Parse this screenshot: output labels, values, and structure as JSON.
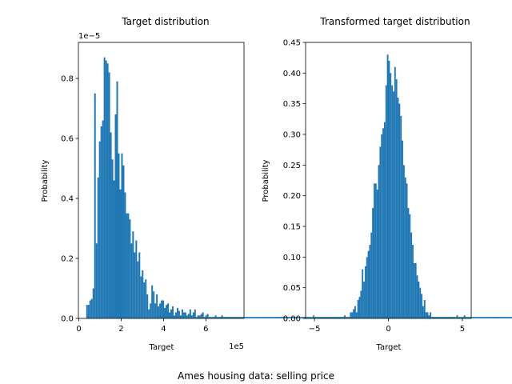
{
  "figure": {
    "suptitle": "Ames housing data: selling price"
  },
  "colors": {
    "bar": "#1f77b4"
  },
  "chart_data": [
    {
      "type": "bar",
      "title": "Target distribution",
      "xlabel": "Target",
      "ylabel": "Probability",
      "x_offset_text": "1e5",
      "y_offset_text": "1e−5",
      "xlim": [
        -0.02,
        7.8
      ],
      "ylim": [
        0,
        0.92
      ],
      "xticks": [
        0,
        2,
        4,
        6
      ],
      "xtick_labels": [
        "0",
        "2",
        "4",
        "6"
      ],
      "yticks": [
        0,
        0.2,
        0.4,
        0.6,
        0.8
      ],
      "ytick_labels": [
        "0.0",
        "0.2",
        "0.4",
        "0.6",
        "0.8"
      ],
      "bin_start": 0.35,
      "bin_width": 0.075,
      "values": [
        0.045,
        0.045,
        0.06,
        0.065,
        0.1,
        0.75,
        0.25,
        0.47,
        0.59,
        0.64,
        0.66,
        0.87,
        0.86,
        0.85,
        0.82,
        0.62,
        0.53,
        0.46,
        0.68,
        0.79,
        0.55,
        0.43,
        0.55,
        0.51,
        0.42,
        0.35,
        0.35,
        0.33,
        0.25,
        0.29,
        0.22,
        0.26,
        0.19,
        0.22,
        0.14,
        0.16,
        0.12,
        0.13,
        0.08,
        0.03,
        0.05,
        0.11,
        0.09,
        0.05,
        0.08,
        0.04,
        0.05,
        0.06,
        0.06,
        0.035,
        0.045,
        0.05,
        0.02,
        0.03,
        0.04,
        0.01,
        0.02,
        0.035,
        0.025,
        0.01,
        0.03,
        0.02,
        0.02,
        0.01,
        0.015,
        0.03,
        0.01,
        0.02,
        0.03,
        0.005,
        0.01,
        0.01,
        0.015,
        0.02,
        0.005,
        0.01,
        0.015,
        0.005,
        0.005,
        0.005,
        0.005,
        0.01,
        0.005,
        0.005,
        0.005,
        0.01,
        0.005,
        0.005,
        0.005,
        0.005,
        0.005,
        0.005,
        0.005,
        0.005,
        0.005,
        0.005,
        0.005,
        0.005,
        0.005,
        0.005,
        0.005,
        0.005,
        0.005,
        0.005,
        0.005,
        0.005,
        0.005,
        0.005,
        0.005,
        0.005,
        0.005,
        0.005,
        0.005,
        0.005,
        0.005,
        0.005,
        0.005,
        0.005,
        0.005,
        0.005,
        0.005,
        0.005,
        0.005,
        0.005,
        0.005,
        0.005,
        0.005,
        0.005,
        0.005,
        0.005,
        0.005,
        0.005,
        0.005,
        0.005,
        0.005,
        0.005,
        0.005,
        0.005,
        0.005,
        0.005,
        0.005,
        0.005,
        0.005,
        0.005,
        0.005,
        0.005,
        0.005,
        0.005,
        0.005,
        0.005,
        0.005,
        0.005,
        0.005,
        0.005,
        0.005,
        0.005,
        0.005,
        0.005,
        0.005,
        0.005,
        0.005,
        0.005,
        0.005,
        0.005,
        0.005,
        0.005,
        0.005,
        0.005,
        0.005,
        0.005,
        0.005,
        0.005,
        0.005,
        0.005,
        0.005,
        0.005,
        0.005,
        0.005,
        0.005,
        0.005,
        0.005,
        0.005,
        0.005,
        0.005,
        0.005,
        0.005,
        0.005,
        0.005,
        0.005,
        0.005,
        0.005,
        0.005,
        0.005,
        0.005,
        0.005,
        0.005,
        0.005,
        0.005,
        0.005,
        0.005,
        0.005,
        0.005,
        0.005,
        0.005,
        0.005,
        0.005,
        0.005,
        0.005,
        0.005,
        0.005,
        0.005,
        0.005,
        0.005,
        0.005,
        0.005,
        0.005,
        0.005,
        0.005,
        0.005,
        0.005,
        0.005,
        0.005,
        0.005,
        0.005,
        0.005,
        0.005,
        0.005,
        0.005,
        0.005,
        0.005,
        0.005,
        0.005,
        0.005,
        0.005,
        0.005,
        0.005,
        0.005,
        0.005,
        0.005,
        0.005,
        0.005,
        0.005,
        0.005,
        0.005,
        0.005,
        0.005,
        0.005,
        0.005,
        0.005,
        0.005,
        0.005,
        0.005,
        0.005,
        0.005,
        0.005,
        0.005,
        0.005,
        0.005,
        0.005,
        0.005,
        0.005,
        0.005,
        0.005,
        0.005,
        0.005,
        0.005,
        0.005,
        0.005,
        0.005,
        0.005,
        0.005,
        0.005
      ]
    },
    {
      "type": "bar",
      "title": "Transformed target distribution",
      "xlabel": "Target",
      "ylabel": "",
      "xlim": [
        -5.6,
        5.6
      ],
      "ylim": [
        0,
        0.45
      ],
      "xticks": [
        -5,
        0,
        5
      ],
      "xtick_labels": [
        "−5",
        "0",
        "5"
      ],
      "yticks": [
        0,
        0.05,
        0.1,
        0.15,
        0.2,
        0.25,
        0.3,
        0.35,
        0.4,
        0.45
      ],
      "ytick_labels": [
        "0.00",
        "0.05",
        "0.10",
        "0.15",
        "0.20",
        "0.25",
        "0.30",
        "0.35",
        "0.40",
        "0.45"
      ],
      "bin_start": -5.1,
      "bin_width": 0.1,
      "values": [
        0.005,
        0,
        0,
        0,
        0,
        0,
        0,
        0,
        0,
        0,
        0,
        0,
        0,
        0,
        0,
        0,
        0,
        0,
        0,
        0,
        0,
        0.005,
        0,
        0,
        0,
        0.01,
        0.01,
        0.015,
        0.02,
        0.01,
        0.03,
        0.035,
        0.045,
        0.08,
        0.06,
        0.085,
        0.1,
        0.11,
        0.12,
        0.14,
        0.18,
        0.22,
        0.22,
        0.21,
        0.25,
        0.28,
        0.3,
        0.31,
        0.32,
        0.38,
        0.43,
        0.42,
        0.4,
        0.38,
        0.37,
        0.41,
        0.39,
        0.36,
        0.35,
        0.33,
        0.29,
        0.25,
        0.23,
        0.22,
        0.18,
        0.17,
        0.14,
        0.12,
        0.09,
        0.09,
        0.07,
        0.06,
        0.05,
        0.04,
        0.02,
        0.03,
        0.01,
        0.01,
        0.005,
        0.01,
        0,
        0,
        0,
        0,
        0,
        0,
        0,
        0,
        0,
        0,
        0,
        0,
        0,
        0,
        0,
        0,
        0,
        0.005,
        0,
        0,
        0,
        0,
        0.005
      ]
    }
  ]
}
